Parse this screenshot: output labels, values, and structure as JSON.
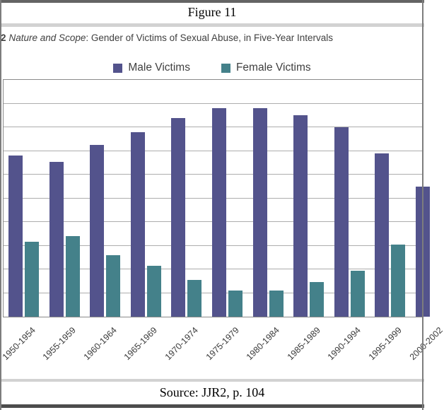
{
  "figure_header": {
    "title": "Figure 11"
  },
  "caption": {
    "bold_prefix": "2",
    "italic_text": "Nature and Scope",
    "rest_text": ": Gender of Victims of Sexual Abuse, in Five-Year Intervals"
  },
  "source": {
    "text": "Source: JJR2, p. 104"
  },
  "colors": {
    "male_bar": "#53538C",
    "female_bar": "#44818A",
    "gridline": "#ADADAD",
    "plot_border": "#8A8A8A",
    "text_dark": "#3F3F3F"
  },
  "chart_data": {
    "type": "bar",
    "title": "",
    "xlabel": "",
    "ylabel": "",
    "categories": [
      "1950-1954",
      "1955-1959",
      "1960-1964",
      "1965-1969",
      "1970-1974",
      "1975-1979",
      "1980-1984",
      "1985-1989",
      "1990-1994",
      "1995-1999",
      "2000-2002"
    ],
    "series": [
      {
        "name": "Male Victims",
        "color": "#53538C",
        "values": [
          68,
          65.5,
          72.5,
          78,
          84,
          88,
          88,
          85,
          80,
          69,
          55
        ]
      },
      {
        "name": "Female Victims",
        "color": "#44818A",
        "values": [
          31.5,
          34,
          26,
          21.5,
          15.5,
          11,
          11,
          14.5,
          19.5,
          30.5,
          null
        ]
      }
    ],
    "ylim": [
      0,
      100
    ],
    "gridline_interval": 10,
    "grid": true,
    "legend_position": "top",
    "y_tick_labels_visible": false,
    "clipped_edges": "left edge of first x label, right edge of last group and last female bar are cropped"
  }
}
